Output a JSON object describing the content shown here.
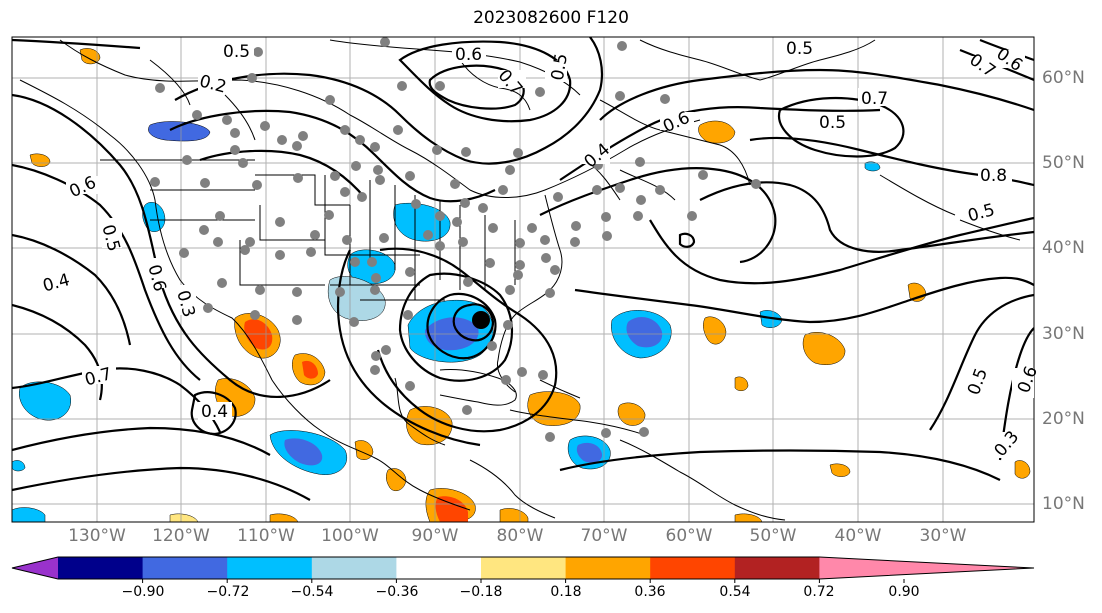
{
  "title": "2023082600 F120",
  "lat_ticks": [
    "60°N",
    "50°N",
    "40°N",
    "30°N",
    "20°N",
    "10°N"
  ],
  "lon_ticks": [
    "130°W",
    "120°W",
    "110°W",
    "100°W",
    "90°W",
    "80°W",
    "70°W",
    "60°W",
    "50°W",
    "40°W",
    "30°W"
  ],
  "colorbar": {
    "ticks": [
      "−0.90",
      "−0.72",
      "−0.54",
      "−0.36",
      "−0.18",
      "0.18",
      "0.36",
      "0.54",
      "0.72",
      "0.90"
    ],
    "colors": [
      "#9932cc",
      "#00008b",
      "#4169e1",
      "#00bfff",
      "#add8e6",
      "#ffffff",
      "#ffe680",
      "#ffa500",
      "#ff4500",
      "#b22222",
      "#ff88aa"
    ]
  },
  "contour_labels": [
    "0.5",
    "0.6",
    "0.7",
    "0.5",
    "0.5",
    "0.6",
    "0.2",
    "0.7",
    "0.7",
    "0.5",
    "0.6",
    "0.4",
    "0.8",
    "0.5",
    "0.6",
    "0.5",
    "0.6",
    "0.3",
    "0.4",
    "0.7",
    "0.4",
    "0.5",
    "0.6",
    "0.3"
  ],
  "shading_colors": {
    "light_blue": "#add8e6",
    "blue": "#00bfff",
    "dark_blue": "#4169e1",
    "yellow": "#ffe680",
    "orange": "#ffa500",
    "red": "#ff4500"
  }
}
